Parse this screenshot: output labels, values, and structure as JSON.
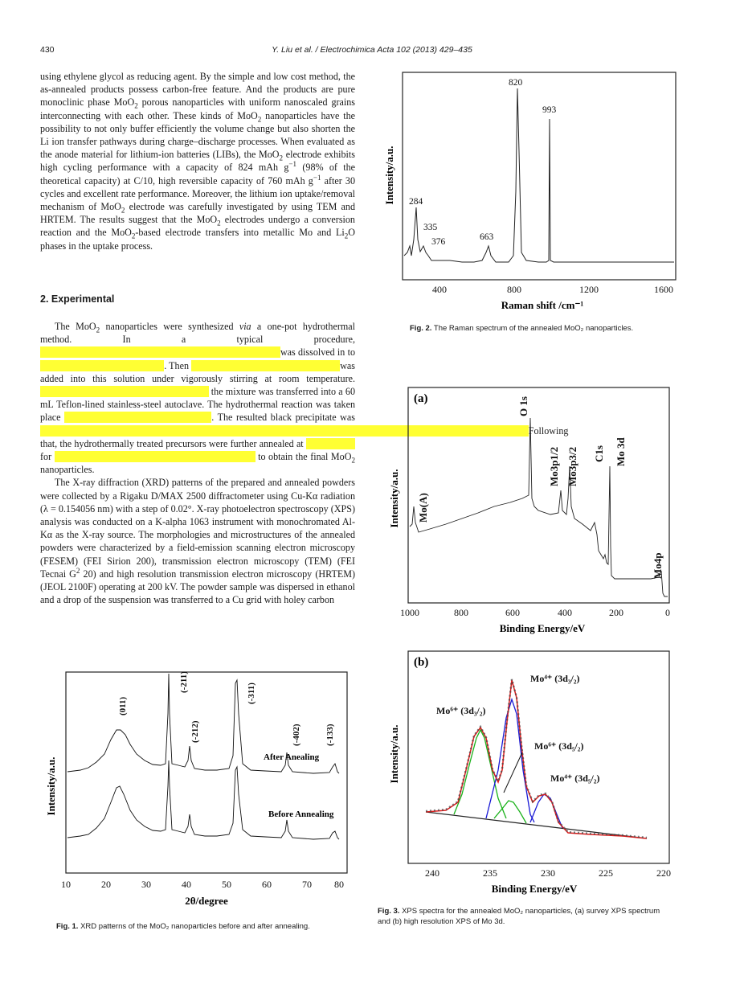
{
  "header": {
    "page_number": "430",
    "journal": "Y. Liu et al. / Electrochimica Acta 102 (2013) 429–435"
  },
  "section": {
    "heading": "2.  Experimental"
  },
  "fig1": {
    "caption_label": "Fig. 1.",
    "caption_text": "XRD patterns of the MoO₂ nanoparticles before and after annealing.",
    "peaks": [
      "(011)",
      "(-211)",
      "(-212)",
      "(-311)",
      "(-402)",
      "(-133)"
    ],
    "legend": [
      "After Anealing",
      "Before Annealing"
    ],
    "xticks": [
      "10",
      "20",
      "30",
      "40",
      "50",
      "60",
      "70",
      "80"
    ],
    "xlabel": "2θ/degree",
    "ylabel": "Intensity/a.u."
  },
  "fig2": {
    "caption_label": "Fig. 2.",
    "caption_text": "The Raman spectrum of the annealed MoO₂ nanoparticles.",
    "peaks": [
      "820",
      "993",
      "284",
      "335",
      "376",
      "663"
    ],
    "xticks": [
      "400",
      "800",
      "1200",
      "1600"
    ],
    "xlabel": "Raman shift /cm⁻¹",
    "ylabel": "Intensity/a.u."
  },
  "fig3a": {
    "panel": "(a)",
    "peaks": [
      "O 1s",
      "Mo3p1/2",
      "Mo3p3/2",
      "C1s",
      "Mo 3d",
      "Mo(A)",
      "Mo4p"
    ],
    "xticks": [
      "1000",
      "800",
      "600",
      "400",
      "200",
      "0"
    ],
    "xlabel": "Binding Energy/eV",
    "ylabel": "Intensity/a.u."
  },
  "fig3b": {
    "panel": "(b)",
    "labels": [
      "Mo⁴⁺ (3d₃/₂)",
      "Mo⁶⁺ (3d₃/₂)",
      "Mo⁶⁺ (3d₅/₂)",
      "Mo⁴⁺ (3d₅/₂)"
    ],
    "xticks": [
      "240",
      "235",
      "230",
      "225",
      "220"
    ],
    "xlabel": "Binding Energy/eV",
    "ylabel": "Intensity/a.u."
  },
  "fig3": {
    "caption_label": "Fig. 3.",
    "caption_line1": "XPS spectra for the annealed MoO₂ nanoparticles, (a) survey XPS spectrum",
    "caption_line2": "and (b) high resolution XPS of Mo 3d."
  },
  "chart_data": [
    {
      "type": "line",
      "title": "Fig. 1",
      "xlabel": "2θ/degree",
      "ylabel": "Intensity/a.u.",
      "xlim": [
        10,
        80
      ],
      "series": [
        {
          "name": "After Anealing",
          "peaks_x": [
            25,
            37,
            42,
            54,
            66,
            79
          ]
        },
        {
          "name": "Before Annealing",
          "peaks_x": [
            24,
            37,
            42,
            54,
            66,
            79
          ]
        }
      ]
    },
    {
      "type": "line",
      "title": "Fig. 2",
      "xlabel": "Raman shift /cm-1",
      "ylabel": "Intensity/a.u.",
      "xlim": [
        250,
        1750
      ],
      "series": [
        {
          "peaks_x": [
            284,
            335,
            376,
            663,
            820,
            993
          ]
        }
      ]
    },
    {
      "type": "line",
      "title": "Fig. 3(a)",
      "xlabel": "Binding Energy/eV",
      "ylabel": "Intensity/a.u.",
      "xlim": [
        1000,
        0
      ],
      "series": [
        {
          "peaks_x": [
            531,
            413,
            398,
            285,
            232,
            978,
            35
          ]
        }
      ]
    },
    {
      "type": "line",
      "title": "Fig. 3(b)",
      "xlabel": "Binding Energy/eV",
      "ylabel": "Intensity/a.u.",
      "xlim": [
        241,
        220
      ],
      "series": [
        {
          "peaks_x": [
            235.7,
            233.1,
            232.6,
            230.5
          ]
        }
      ]
    }
  ]
}
